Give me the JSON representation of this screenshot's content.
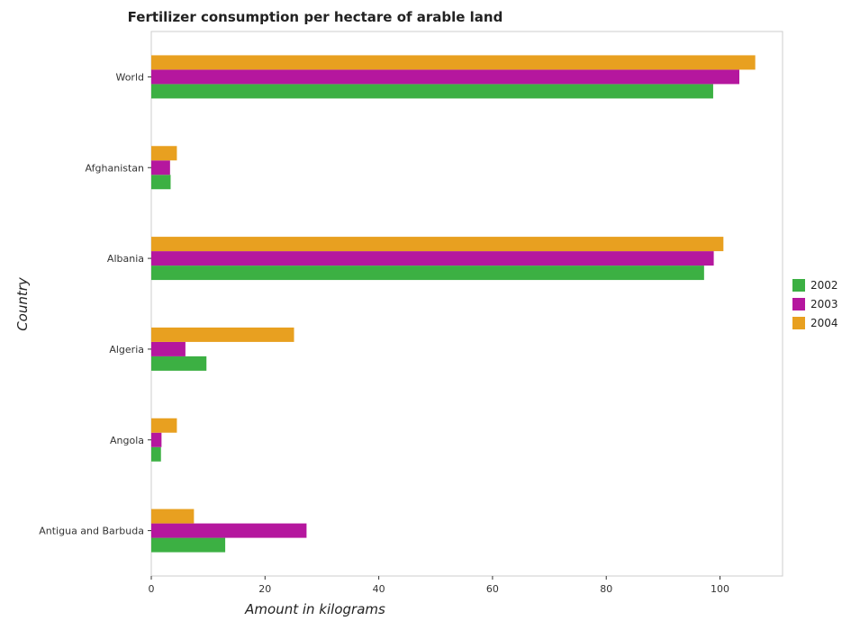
{
  "chart_data": {
    "type": "bar",
    "orientation": "horizontal",
    "title": "Fertilizer consumption per hectare of arable land",
    "xlabel": "Amount in kilograms",
    "ylabel": "Country",
    "categories": [
      "World",
      "Afghanistan",
      "Albania",
      "Algeria",
      "Angola",
      "Antigua and Barbuda"
    ],
    "series": [
      {
        "name": "2002",
        "color": "#3cb043",
        "values": [
          98.8,
          3.4,
          97.2,
          9.7,
          1.7,
          13.0
        ]
      },
      {
        "name": "2003",
        "color": "#b5179e",
        "values": [
          103.4,
          3.3,
          98.9,
          6.0,
          1.8,
          27.3
        ]
      },
      {
        "name": "2004",
        "color": "#e8a020",
        "values": [
          106.2,
          4.5,
          100.6,
          25.1,
          4.5,
          7.5
        ]
      }
    ],
    "xlim": [
      0,
      111
    ],
    "xticks": [
      0,
      20,
      40,
      60,
      80,
      100
    ],
    "grid": false,
    "legend_position": "right"
  }
}
